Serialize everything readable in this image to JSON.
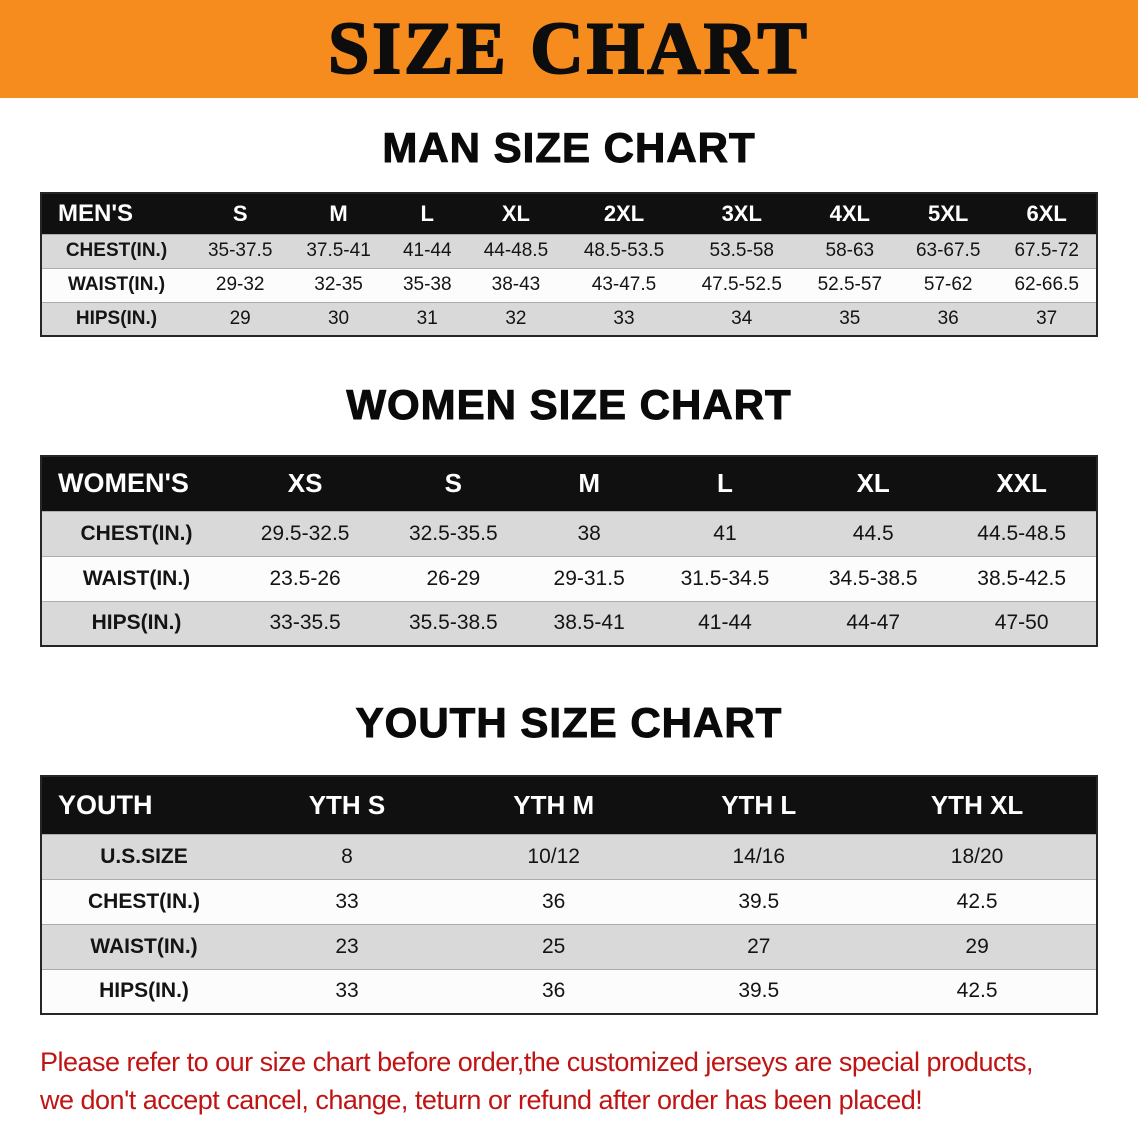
{
  "banner": {
    "title": "SIZE CHART",
    "bg_color": "#F68C1E",
    "text_color": "#0d0d0d"
  },
  "men": {
    "heading": "MAN SIZE CHART",
    "table": {
      "header": [
        "MEN'S",
        "S",
        "M",
        "L",
        "XL",
        "2XL",
        "3XL",
        "4XL",
        "5XL",
        "6XL"
      ],
      "rows": [
        [
          "CHEST(IN.)",
          "35-37.5",
          "37.5-41",
          "41-44",
          "44-48.5",
          "48.5-53.5",
          "53.5-58",
          "58-63",
          "63-67.5",
          "67.5-72"
        ],
        [
          "WAIST(IN.)",
          "29-32",
          "32-35",
          "35-38",
          "38-43",
          "43-47.5",
          "47.5-52.5",
          "52.5-57",
          "57-62",
          "62-66.5"
        ],
        [
          "HIPS(IN.)",
          "29",
          "30",
          "31",
          "32",
          "33",
          "34",
          "35",
          "36",
          "37"
        ]
      ]
    }
  },
  "women": {
    "heading": "WOMEN SIZE CHART",
    "table": {
      "header": [
        "WOMEN'S",
        "XS",
        "S",
        "M",
        "L",
        "XL",
        "XXL"
      ],
      "rows": [
        [
          "CHEST(IN.)",
          "29.5-32.5",
          "32.5-35.5",
          "38",
          "41",
          "44.5",
          "44.5-48.5"
        ],
        [
          "WAIST(IN.)",
          "23.5-26",
          "26-29",
          "29-31.5",
          "31.5-34.5",
          "34.5-38.5",
          "38.5-42.5"
        ],
        [
          "HIPS(IN.)",
          "33-35.5",
          "35.5-38.5",
          "38.5-41",
          "41-44",
          "44-47",
          "47-50"
        ]
      ]
    }
  },
  "youth": {
    "heading": "YOUTH SIZE CHART",
    "table": {
      "header": [
        "YOUTH",
        "YTH S",
        "YTH M",
        "YTH L",
        "YTH XL"
      ],
      "rows": [
        [
          "U.S.SIZE",
          "8",
          "10/12",
          "14/16",
          "18/20"
        ],
        [
          "CHEST(IN.)",
          "33",
          "36",
          "39.5",
          "42.5"
        ],
        [
          "WAIST(IN.)",
          "23",
          "25",
          "27",
          "29"
        ],
        [
          "HIPS(IN.)",
          "33",
          "36",
          "39.5",
          "42.5"
        ]
      ]
    }
  },
  "disclaimer": {
    "line1": "Please refer to our size chart before order,the customized jerseys are special products,",
    "line2": "we don't accept cancel, change, teturn or refund after order has been placed!",
    "color": "#C01414"
  }
}
